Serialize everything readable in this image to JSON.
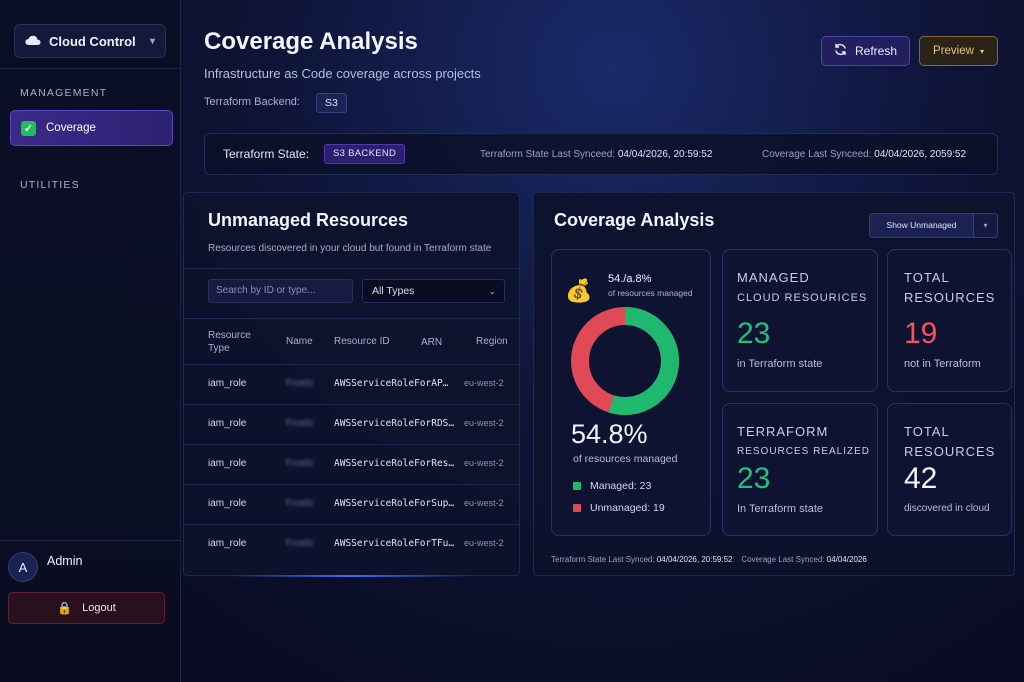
{
  "sidebar": {
    "app_name": "Cloud Control",
    "management_label": "MANAGEMENT",
    "nav_coverage": "Coverage",
    "utilities_label": "UTILITIES",
    "user_initial": "A",
    "user_name": "Admin",
    "logout_label": "Logout"
  },
  "header": {
    "title": "Coverage Analysis",
    "subtitle": "Infrastructure as Code coverage across projects",
    "backend_label": "Terraform Backend:",
    "backend_value": "S3",
    "refresh_label": "Refresh",
    "preview_label": "Preview"
  },
  "state_bar": {
    "label": "Terraform State:",
    "badge": "S3 BACKEND",
    "synced_label": "Terraform State Last Synceed:",
    "synced_value": "04/04/2026, 20:59:52",
    "coverage_label": "Coverage Last Synceed:",
    "coverage_value": "04/04/2026, 2059:52"
  },
  "unmanaged": {
    "title": "Unmanaged Resources",
    "subtitle": "Resources discovered in your cloud but found in Terraform state",
    "search_placeholder": "Search by ID or type...",
    "type_select": "All Types",
    "columns": [
      "Resource Type",
      "Name",
      "Resource ID",
      "ARN",
      "Region"
    ],
    "rows": [
      {
        "type": "iam_role",
        "name": "Froelz",
        "id": "AWSServiceRoleForAP…",
        "region": "eu-west-2"
      },
      {
        "type": "iam_role",
        "name": "Froelz",
        "id": "AWSServiceRoleForRDS…",
        "region": "eu-west-2"
      },
      {
        "type": "iam_role",
        "name": "Froelz",
        "id": "AWSServiceRoleForRes…",
        "region": "eu-west-2"
      },
      {
        "type": "iam_role",
        "name": "Froelz",
        "id": "AWSServiceRoleForSup…",
        "region": "eu-west-2"
      },
      {
        "type": "iam_role",
        "name": "Froelz",
        "id": "AWSServiceRoleForTFu…",
        "region": "eu-west-2"
      }
    ]
  },
  "coverage": {
    "title": "Coverage Analysis",
    "show_unmanaged": "Show Unmanaged",
    "mini_pct": "54./a.8%",
    "mini_sub": "of resources managed",
    "big_pct": "54.8%",
    "big_sub": "of resources managed",
    "managed_legend": "Managed: 23",
    "unmanaged_legend": "Unmanaged: 19",
    "managed_fraction": 0.548,
    "colors": {
      "managed": "#1fb86f",
      "unmanaged": "#e04a56"
    },
    "cards": {
      "managed_title_1": "MANAGED",
      "managed_title_2": "CLOUD RESOURICES",
      "managed_value": "23",
      "managed_sub": "in Terraform state",
      "total_title_1": "TOTAL",
      "total_title_2": "RESOURCES",
      "total_value": "19",
      "total_sub": "not in Terraform",
      "realized_title_1": "TERRAFORM",
      "realized_title_2": "RESOURCES REALIZED",
      "realized_value": "23",
      "realized_sub": "In Terraform state",
      "cloud_title_1": "TOTAL",
      "cloud_title_2": "RESOURCES",
      "cloud_value": "42",
      "cloud_sub": "discovered in cloud"
    },
    "footer_synced_label": "Terraform State Last Synced:",
    "footer_synced_value": "04/04/2026, 20:59:52",
    "footer_coverage_label": "Coverage Last Synced:",
    "footer_coverage_value": "04/04/2026"
  }
}
